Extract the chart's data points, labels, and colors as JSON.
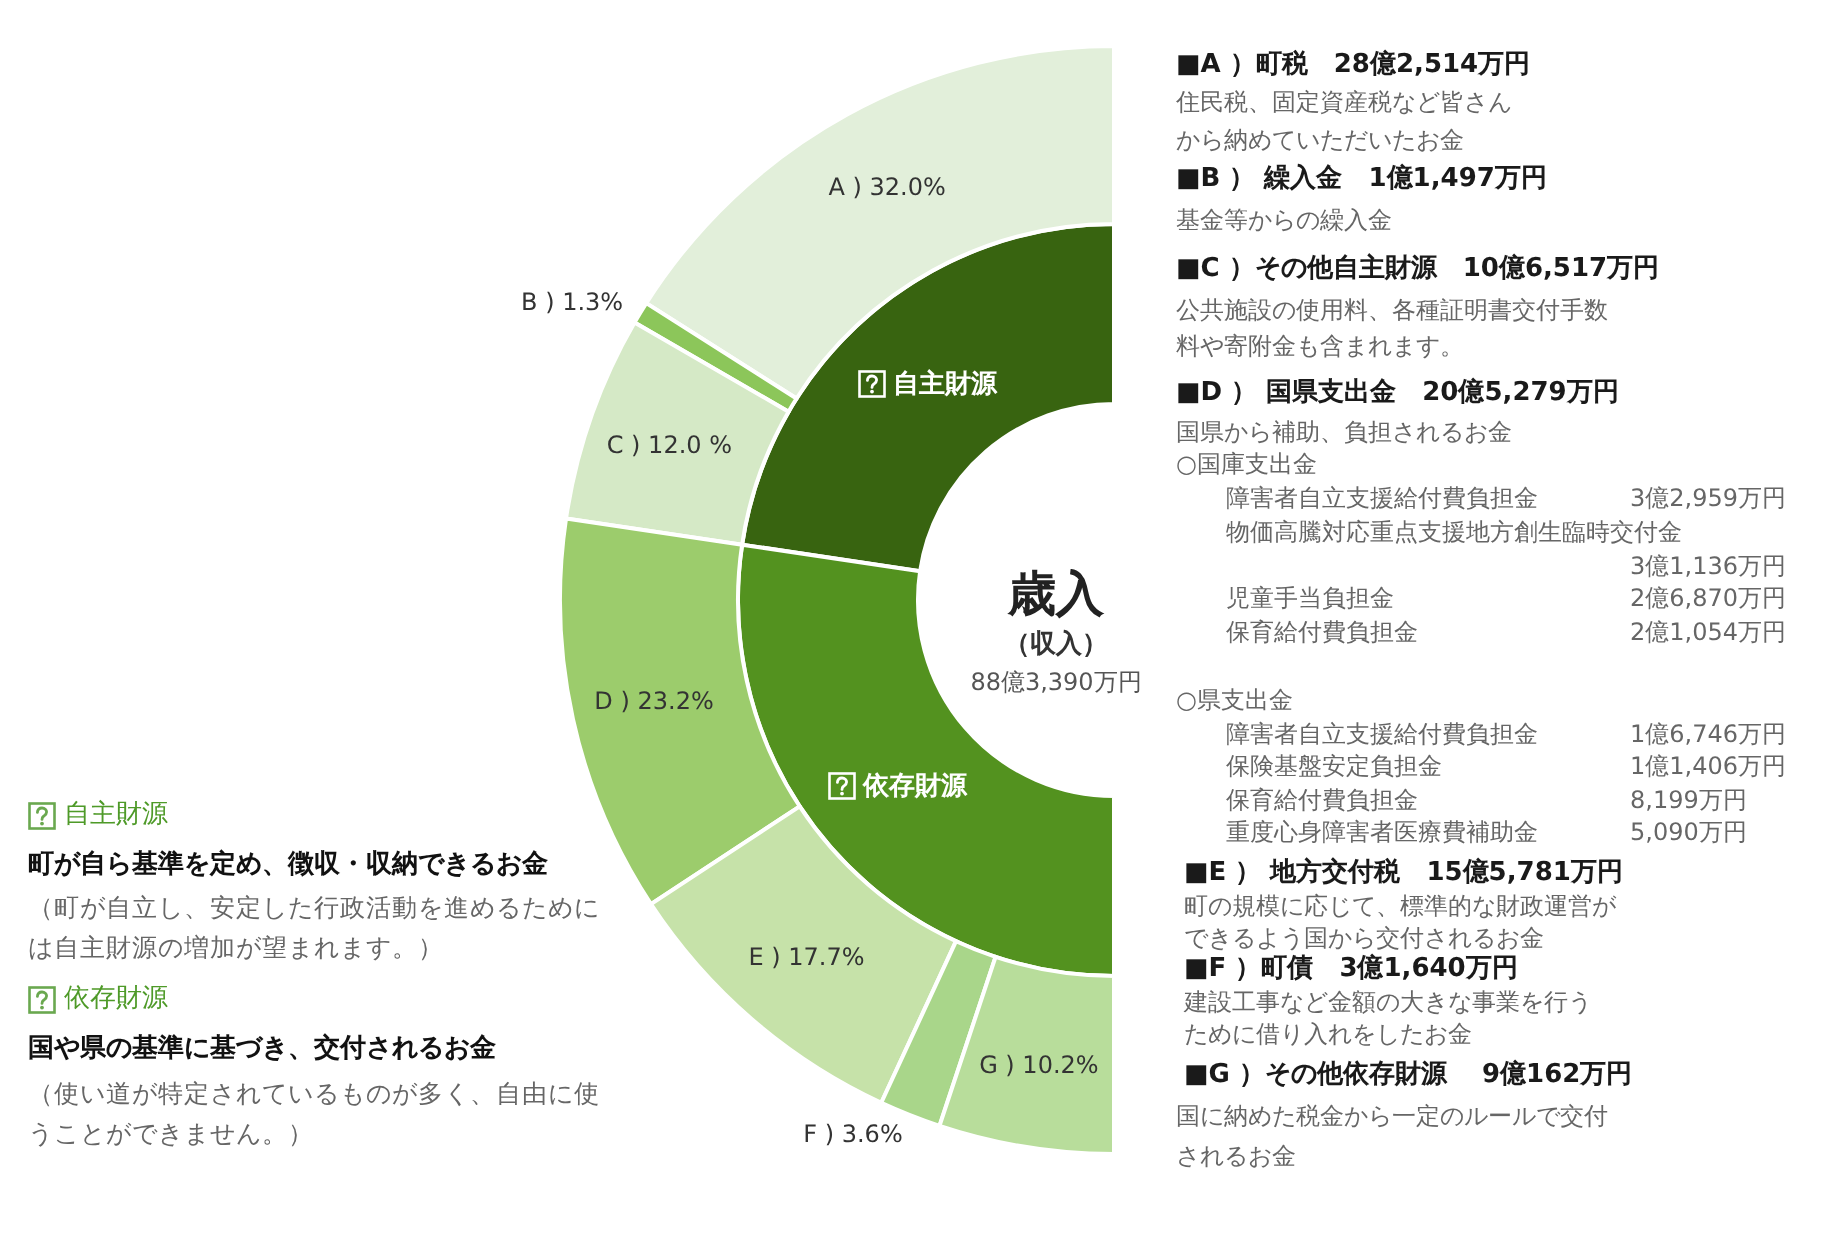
{
  "chart_data": [
    {
      "type": "donut",
      "title": "歳入",
      "subtitle": "（収入）",
      "categories": [
        "自主財源",
        "依存財源"
      ],
      "values": [
        45.3,
        54.7
      ],
      "colors": [
        "#386410",
        "#53921f"
      ],
      "annotations": [
        "88億3,390万円",
        "自主財源",
        "町が自ら基準を定め、徴収・収納できるお金",
        "（町が自立し、安定した行政活動を進めるために",
        "は自主財源の増加が望まれます。）",
        "依存財源",
        "国や県の基準に基づき、交付されるお金",
        "（使い道が特定されているものが多く、自由に使",
        "うことができません。）"
      ]
    },
    {
      "type": "donut",
      "categories": [
        "A )",
        "B )",
        "C )",
        "D )",
        "E )",
        "F )",
        "G )"
      ],
      "values": [
        32.0,
        1.3,
        12.0,
        23.2,
        17.7,
        3.6,
        10.2
      ],
      "colors": [
        "#e2efda",
        "#8cc65a",
        "#d5e9c6",
        "#9ccc6c",
        "#c6e2a9",
        "#a9d68a",
        "#b8dd9b"
      ],
      "value_labels": [
        "32.0%",
        "1.3%",
        "12.0 %",
        "23.2%",
        "17.7%",
        "3.6%",
        "10.2%"
      ],
      "annotations": [
        "■A ）町税　28億2,514万円",
        "住民税、固定資産税など皆さん",
        "から納めていただいたお金",
        "■B ） 繰入金　1億1,497万円",
        "基金等からの繰入金",
        "■C ）その他自主財源　10億6,517万円",
        "公共施設の使用料、各種証明書交付手数",
        "料や寄附金も含まれます。",
        "■D ） 国県支出金　20億5,279万円",
        "国県から補助、負担されるお金",
        "○国庫支出金",
        "障害者自立支援給付費負担金",
        "3億2,959万円",
        "物価高騰対応重点支援地方創生臨時交付金",
        "3億1,136万円",
        "児童手当負担金",
        "2億6,870万円",
        "保育給付費負担金",
        "2億1,054万円",
        "○県支出金",
        "障害者自立支援給付費負担金",
        "1億6,746万円",
        "保険基盤安定負担金",
        "1億1,406万円",
        "保育給付費負担金",
        "8,199万円",
        "重度心身障害者医療費補助金",
        "5,090万円",
        "■E ） 地方交付税　15億5,781万円",
        "町の規模に応じて、標準的な財政運営が",
        "できるよう国から交付されるお金",
        "■F ）町債　3億1,640万円",
        "建設工事など金額の大きな事業を行う",
        "ために借り入れをしたお金",
        "■G ）その他依存財源　 9億162万円",
        "国に納めた税金から一定のルールで交付",
        "されるお金"
      ]
    }
  ]
}
